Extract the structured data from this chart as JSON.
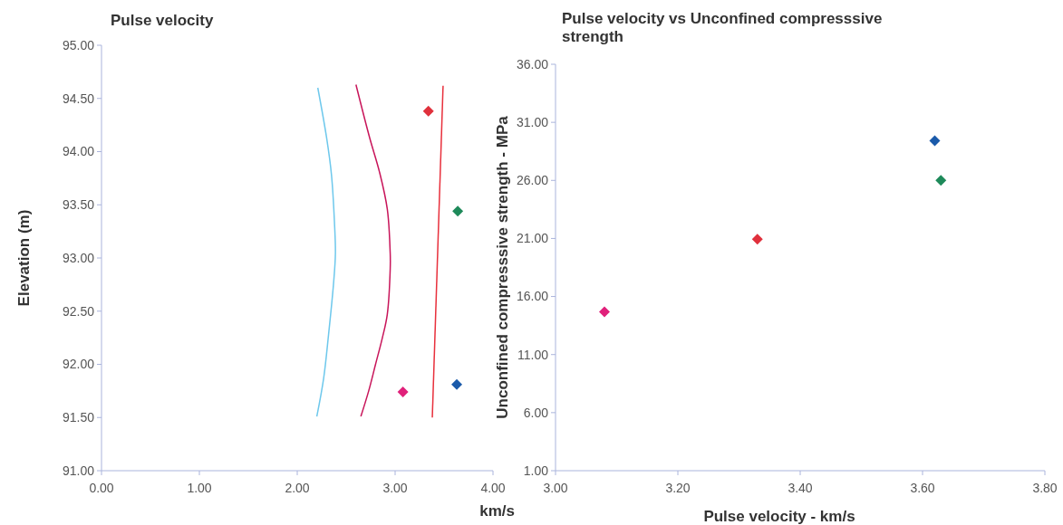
{
  "chart_data": [
    {
      "type": "line",
      "title": "Pulse velocity",
      "xlabel": "km/s",
      "ylabel": "Elevation (m)",
      "xlim": [
        0,
        4
      ],
      "xticks": [
        {
          "value": 0,
          "label": "0.00"
        },
        {
          "value": 1,
          "label": "1.00"
        },
        {
          "value": 2,
          "label": "2.00"
        },
        {
          "value": 3,
          "label": "3.00"
        },
        {
          "value": 4,
          "label": "4.00"
        }
      ],
      "ylim": [
        91,
        95
      ],
      "yticks": [
        {
          "value": 91,
          "label": "91.00"
        },
        {
          "value": 91.5,
          "label": "91.50"
        },
        {
          "value": 92,
          "label": "92.00"
        },
        {
          "value": 92.5,
          "label": "92.50"
        },
        {
          "value": 93,
          "label": "93.00"
        },
        {
          "value": 93.5,
          "label": "93.50"
        },
        {
          "value": 94,
          "label": "94.00"
        },
        {
          "value": 94.5,
          "label": "94.50"
        },
        {
          "value": 95,
          "label": "95.00"
        }
      ],
      "line_style": "solid",
      "series": [
        {
          "color": "#6ec8ec",
          "x": [
            2.2,
            2.27,
            2.32,
            2.37,
            2.39,
            2.38,
            2.35,
            2.3,
            2.21
          ],
          "values": [
            91.51,
            91.87,
            92.28,
            92.75,
            93.04,
            93.34,
            93.78,
            94.13,
            94.6
          ]
        },
        {
          "color": "#c8155a",
          "x": [
            2.65,
            2.73,
            2.8,
            2.87,
            2.92,
            2.95,
            2.95,
            2.92,
            2.84,
            2.74,
            2.6
          ],
          "values": [
            91.51,
            91.75,
            92.0,
            92.25,
            92.47,
            92.9,
            93.04,
            93.46,
            93.81,
            94.13,
            94.63
          ]
        },
        {
          "color": "#e8303c",
          "x": [
            3.38,
            3.49
          ],
          "values": [
            91.5,
            94.62
          ]
        },
        {
          "type": "scatter",
          "marker": "diamond",
          "color": "#e0303c",
          "x": [
            3.34
          ],
          "values": [
            94.38
          ]
        },
        {
          "type": "scatter",
          "marker": "diamond",
          "color": "#1e8a5a",
          "x": [
            3.64
          ],
          "values": [
            93.44
          ]
        },
        {
          "type": "scatter",
          "marker": "diamond",
          "color": "#e0207a",
          "x": [
            3.08
          ],
          "values": [
            91.74
          ]
        },
        {
          "type": "scatter",
          "marker": "diamond",
          "color": "#1a5aaa",
          "x": [
            3.63
          ],
          "values": [
            91.81
          ]
        }
      ]
    },
    {
      "type": "scatter",
      "title": "Pulse velocity vs Unconfined compresssive strength",
      "xlabel": "Pulse velocity - km/s",
      "ylabel": "Unconfined compresssive strength - MPa",
      "xlim": [
        3,
        3.8
      ],
      "xticks": [
        {
          "value": 3,
          "label": "3.00"
        },
        {
          "value": 3.2,
          "label": "3.20"
        },
        {
          "value": 3.4,
          "label": "3.40"
        },
        {
          "value": 3.6,
          "label": "3.60"
        },
        {
          "value": 3.8,
          "label": "3.80"
        }
      ],
      "ylim": [
        1,
        36
      ],
      "yticks": [
        {
          "value": 1,
          "label": "1.00"
        },
        {
          "value": 6,
          "label": "6.00"
        },
        {
          "value": 11,
          "label": "11.00"
        },
        {
          "value": 16,
          "label": "16.00"
        },
        {
          "value": 21,
          "label": "21.00"
        },
        {
          "value": 26,
          "label": "26.00"
        },
        {
          "value": 31,
          "label": "31.00"
        },
        {
          "value": 36,
          "label": "36.00"
        }
      ],
      "marker": "diamond",
      "series": [
        {
          "color": "#e0207a",
          "x": [
            3.08
          ],
          "values": [
            14.69
          ]
        },
        {
          "color": "#e0303c",
          "x": [
            3.33
          ],
          "values": [
            20.94
          ]
        },
        {
          "color": "#1a5aaa",
          "x": [
            3.62
          ],
          "values": [
            29.41
          ]
        },
        {
          "color": "#1e8a5a",
          "x": [
            3.63
          ],
          "values": [
            26.0
          ]
        }
      ]
    }
  ]
}
